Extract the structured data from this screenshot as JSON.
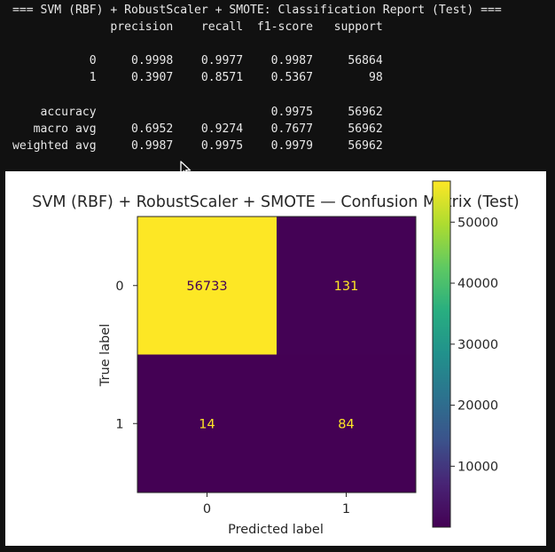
{
  "console": {
    "report_lines": [
      "=== SVM (RBF) + RobustScaler + SMOTE: Classification Report (Test) ===",
      "              precision    recall  f1-score   support",
      "",
      "           0     0.9998    0.9977    0.9987     56864",
      "           1     0.3907    0.8571    0.5367        98",
      "",
      "    accuracy                         0.9975     56962",
      "   macro avg     0.6952    0.9274    0.7677     56962",
      "weighted avg     0.9987    0.9975    0.9979     56962"
    ]
  },
  "chart_data": {
    "type": "heatmap",
    "title": "SVM (RBF) + RobustScaler + SMOTE — Confusion Matrix (Test)",
    "xlabel": "Predicted label",
    "ylabel": "True label",
    "x_categories": [
      "0",
      "1"
    ],
    "y_categories": [
      "0",
      "1"
    ],
    "values": [
      [
        56733,
        131
      ],
      [
        14,
        84
      ]
    ],
    "colormap": "viridis",
    "colorbar": {
      "vmin": 14,
      "vmax": 56733,
      "ticks": [
        10000,
        20000,
        30000,
        40000,
        50000
      ],
      "tick_labels": [
        "10000",
        "20000",
        "30000",
        "40000",
        "50000"
      ]
    },
    "cell_text_colors": {
      "on_dark": "#fde725",
      "on_light": "#440154"
    }
  }
}
